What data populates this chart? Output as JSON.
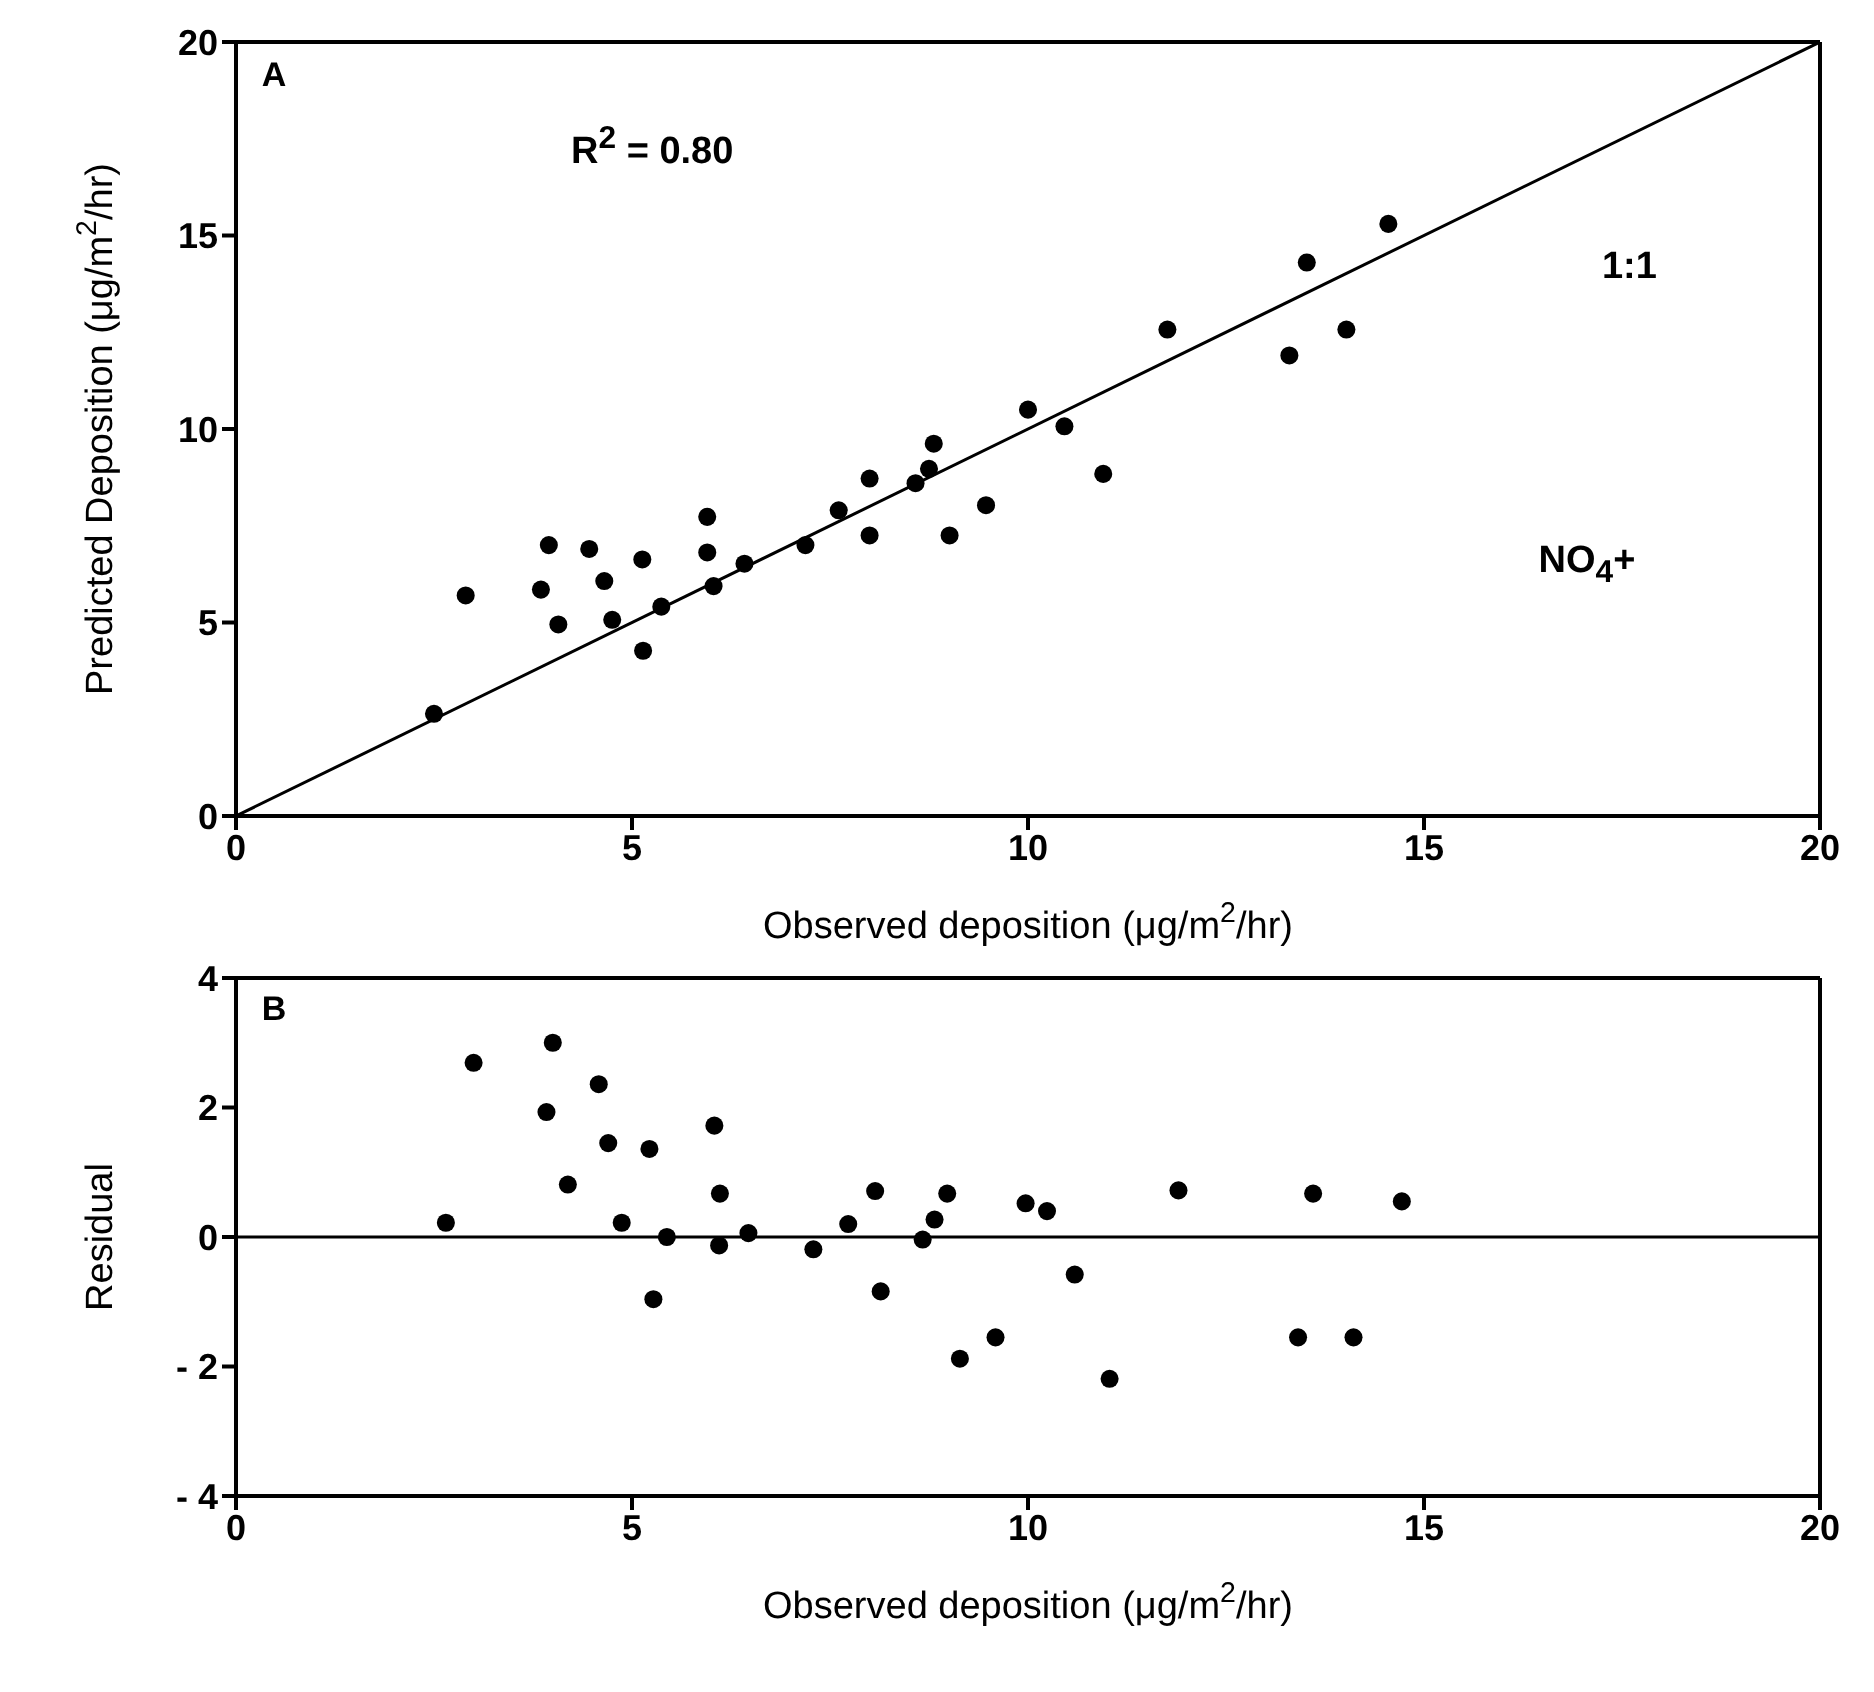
{
  "chart_data": [
    {
      "type": "scatter",
      "xlabel": "Observed deposition (μg/m$^{2}$/hr)",
      "ylabel": "Predicted Deposition (μg/m$^{2}$/hr)",
      "annotations": [
        "A",
        "R$^{2}$ = 0.80",
        "1:1",
        "NO$_{4}$+"
      ],
      "xlim": [
        0,
        20
      ],
      "xticks": [
        0,
        5,
        10,
        15,
        20
      ],
      "ylim": [
        0,
        20
      ],
      "yticks": [
        0,
        5,
        10,
        15,
        20
      ],
      "series": [
        {
          "color": "#000000",
          "marker": "circle",
          "x": [
            2.5,
            2.9,
            3.95,
            3.85,
            4.07,
            4.46,
            4.65,
            4.75,
            5.13,
            5.14,
            5.37,
            5.95,
            5.95,
            6.03,
            6.42,
            7.19,
            7.61,
            8.0,
            8.0,
            8.58,
            8.75,
            8.81,
            9.01,
            9.47,
            10.0,
            10.46,
            10.95,
            11.76,
            13.3,
            13.52,
            14.02,
            14.55
          ],
          "values": [
            2.64,
            5.7,
            7.0,
            5.85,
            4.95,
            6.9,
            6.07,
            5.07,
            6.63,
            4.27,
            5.41,
            7.73,
            6.81,
            5.94,
            6.52,
            7.0,
            7.9,
            8.72,
            7.25,
            8.6,
            8.97,
            9.62,
            7.25,
            8.03,
            10.5,
            10.07,
            8.84,
            12.57,
            11.9,
            14.3,
            12.57,
            15.3
          ]
        },
        {
          "type": "line",
          "color": "#000000",
          "x": [
            0,
            20
          ],
          "values": [
            0,
            20
          ],
          "line_style": "solid"
        }
      ]
    },
    {
      "type": "scatter",
      "xlabel": "Observed deposition (μg/m$^{2}$/hr)",
      "ylabel": "Residual",
      "annotations": [
        "B"
      ],
      "xlim": [
        0,
        20
      ],
      "xticks": [
        0,
        5,
        10,
        15,
        20
      ],
      "ylim": [
        -4,
        4
      ],
      "yticks": [
        {
          "value": -4,
          "label": "- 4"
        },
        {
          "value": -2,
          "label": "- 2"
        },
        0,
        2,
        4
      ],
      "marker": "circle",
      "ref_lines": [
        {
          "axis": "y",
          "value": 0,
          "label": null,
          "color": "#000000"
        }
      ],
      "series": [
        {
          "color": "#000000",
          "x": [
            2.65,
            3.0,
            4.0,
            3.92,
            4.19,
            4.58,
            4.7,
            4.87,
            5.22,
            5.27,
            5.44,
            6.04,
            6.11,
            6.1,
            6.47,
            7.29,
            7.73,
            8.07,
            8.14,
            8.67,
            8.82,
            8.98,
            9.14,
            9.59,
            9.97,
            10.24,
            10.59,
            11.03,
            11.9,
            13.41,
            13.6,
            14.11,
            14.72
          ],
          "values": [
            0.22,
            2.69,
            3.0,
            1.93,
            0.81,
            2.36,
            1.45,
            0.22,
            1.36,
            -0.96,
            0,
            1.72,
            0.67,
            -0.13,
            0.06,
            -0.19,
            0.2,
            0.71,
            -0.84,
            -0.04,
            0.27,
            0.67,
            -1.88,
            -1.55,
            0.52,
            0.4,
            -0.58,
            -2.19,
            0.72,
            -1.55,
            0.67,
            -1.55,
            0.55
          ]
        }
      ]
    }
  ]
}
